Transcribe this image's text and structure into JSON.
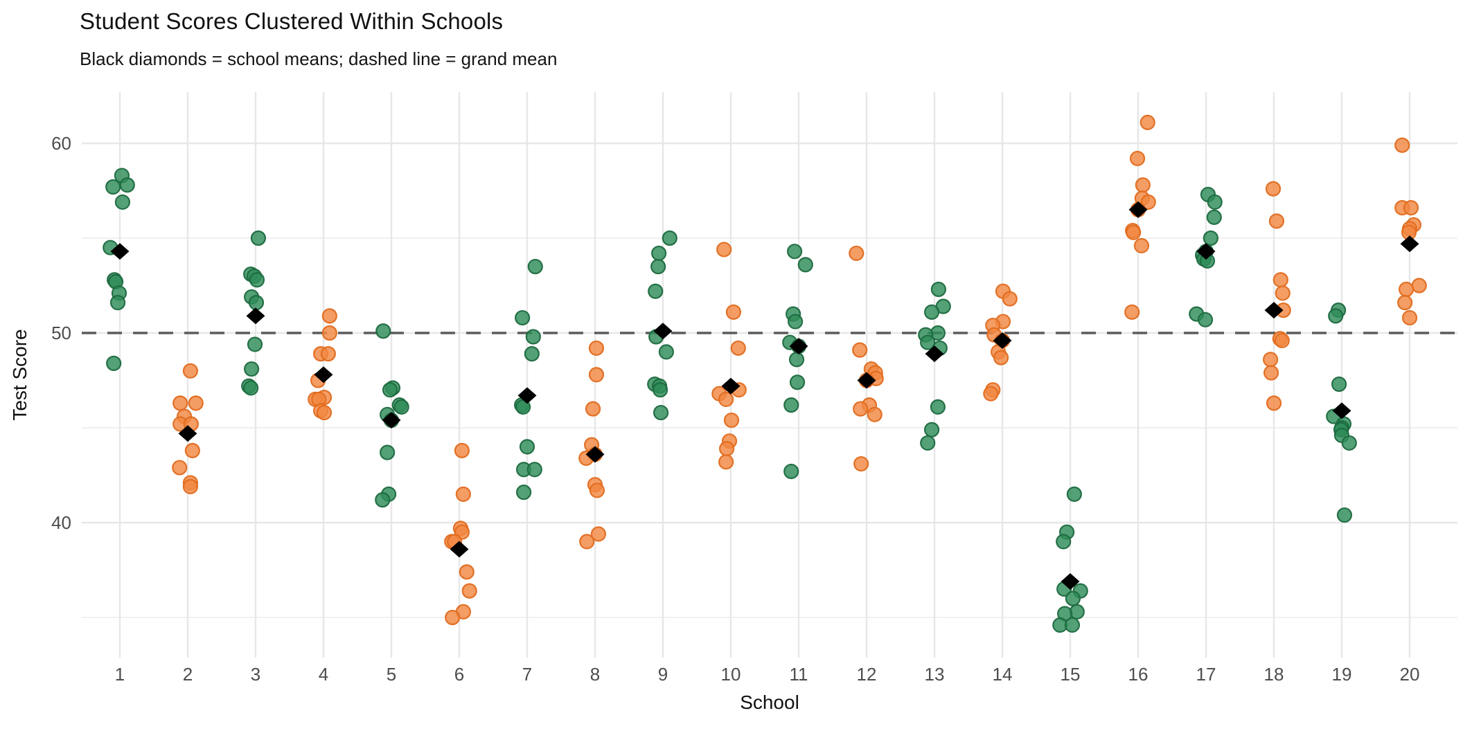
{
  "header": {
    "title": "Student Scores Clustered Within Schools",
    "subtitle": "Black diamonds = school means; dashed line = grand mean"
  },
  "chart_data": {
    "type": "scatter",
    "subtype": "jittered-strip-plot-with-group-means",
    "title": "Student Scores Clustered Within Schools",
    "subtitle": "Black diamonds = school means; dashed line = grand mean",
    "xlabel": "School",
    "ylabel": "Test Score",
    "x_categories": [
      "1",
      "2",
      "3",
      "4",
      "5",
      "6",
      "7",
      "8",
      "9",
      "10",
      "11",
      "12",
      "13",
      "14",
      "15",
      "16",
      "17",
      "18",
      "19",
      "20"
    ],
    "y_ticks": [
      40,
      50,
      60
    ],
    "y_minor_ticks": [
      35,
      45,
      55
    ],
    "ylim": [
      32.9,
      62.7
    ],
    "grand_mean": 50.0,
    "grid": true,
    "legend_position": "none",
    "annotations": {
      "mean_marker": "black diamond per school",
      "grand_mean_line": "horizontal dashed line at y = 50"
    },
    "colors": {
      "green_fill": "#2F8C59",
      "green_stroke": "#1D6A40",
      "orange_fill": "#F28742",
      "orange_stroke": "#E06C1F",
      "mean_diamond": "#000000",
      "grand_mean_line": "#5B5B5B",
      "grid_major": "#E7E7E7",
      "grid_minor": "#F0F0F0",
      "tick_label": "#4D4D4D",
      "axis_title": "#111111"
    },
    "schools": [
      {
        "school": 1,
        "color_group": "green",
        "mean": 54.3,
        "scores": [
          58.3,
          57.8,
          57.7,
          56.9,
          54.5,
          52.8,
          52.7,
          52.1,
          51.6,
          48.4
        ],
        "jitter": [
          0.03,
          0.11,
          -0.1,
          0.04,
          -0.14,
          -0.08,
          -0.06,
          -0.01,
          -0.03,
          -0.09
        ]
      },
      {
        "school": 2,
        "color_group": "orange",
        "mean": 44.7,
        "scores": [
          48.0,
          46.3,
          46.3,
          45.6,
          45.2,
          45.2,
          43.8,
          42.9,
          42.1,
          41.9
        ],
        "jitter": [
          0.04,
          -0.11,
          0.12,
          -0.05,
          -0.11,
          0.05,
          0.07,
          -0.12,
          0.04,
          0.04
        ]
      },
      {
        "school": 3,
        "color_group": "green",
        "mean": 50.9,
        "scores": [
          55.0,
          53.1,
          53.0,
          52.8,
          51.9,
          51.6,
          49.4,
          48.1,
          47.2,
          47.1
        ],
        "jitter": [
          0.04,
          -0.07,
          -0.02,
          0.02,
          -0.06,
          0.01,
          -0.01,
          -0.06,
          -0.1,
          -0.07
        ]
      },
      {
        "school": 4,
        "color_group": "orange",
        "mean": 47.8,
        "scores": [
          50.9,
          50.0,
          48.9,
          48.9,
          47.5,
          46.6,
          46.5,
          46.5,
          45.9,
          45.8
        ],
        "jitter": [
          0.09,
          0.09,
          -0.04,
          0.07,
          -0.08,
          0.01,
          -0.12,
          -0.07,
          -0.04,
          0.01
        ]
      },
      {
        "school": 5,
        "color_group": "green",
        "mean": 45.4,
        "scores": [
          50.1,
          47.1,
          47.0,
          46.2,
          46.1,
          45.7,
          45.4,
          43.7,
          41.5,
          41.2
        ],
        "jitter": [
          -0.12,
          0.02,
          -0.02,
          0.12,
          0.15,
          -0.06,
          0.0,
          -0.06,
          -0.04,
          -0.13
        ]
      },
      {
        "school": 6,
        "color_group": "orange",
        "mean": 38.6,
        "scores": [
          43.8,
          41.5,
          39.7,
          39.5,
          39.0,
          39.0,
          37.4,
          36.4,
          35.3,
          35.0
        ],
        "jitter": [
          0.04,
          0.06,
          0.02,
          0.04,
          -0.11,
          -0.07,
          0.11,
          0.15,
          0.06,
          -0.1
        ]
      },
      {
        "school": 7,
        "color_group": "green",
        "mean": 46.7,
        "scores": [
          53.5,
          50.8,
          49.8,
          48.9,
          46.2,
          46.1,
          44.0,
          42.8,
          42.8,
          41.6
        ],
        "jitter": [
          0.12,
          -0.07,
          0.09,
          0.07,
          -0.08,
          -0.06,
          0.0,
          -0.05,
          0.11,
          -0.05
        ]
      },
      {
        "school": 8,
        "color_group": "orange",
        "mean": 43.6,
        "scores": [
          49.2,
          47.8,
          46.0,
          44.1,
          43.6,
          43.4,
          42.0,
          41.7,
          39.4,
          39.0
        ],
        "jitter": [
          0.02,
          0.02,
          -0.03,
          -0.05,
          0.0,
          -0.13,
          0.0,
          0.03,
          0.05,
          -0.12
        ]
      },
      {
        "school": 9,
        "color_group": "green",
        "mean": 50.1,
        "scores": [
          55.0,
          54.2,
          53.5,
          52.2,
          49.8,
          49.0,
          47.3,
          47.2,
          47.0,
          45.8
        ],
        "jitter": [
          0.1,
          -0.06,
          -0.07,
          -0.11,
          -0.1,
          0.05,
          -0.12,
          -0.05,
          -0.04,
          -0.03
        ]
      },
      {
        "school": 10,
        "color_group": "orange",
        "mean": 47.2,
        "scores": [
          54.4,
          51.1,
          49.2,
          47.0,
          46.8,
          46.5,
          45.4,
          44.3,
          43.9,
          43.2
        ],
        "jitter": [
          -0.1,
          0.04,
          0.11,
          0.12,
          -0.17,
          -0.07,
          0.01,
          -0.02,
          -0.06,
          -0.07
        ]
      },
      {
        "school": 11,
        "color_group": "green",
        "mean": 49.3,
        "scores": [
          54.3,
          53.6,
          51.0,
          50.6,
          49.5,
          49.3,
          48.6,
          47.4,
          46.2,
          42.7
        ],
        "jitter": [
          -0.06,
          0.1,
          -0.08,
          -0.05,
          -0.13,
          0.0,
          -0.03,
          -0.02,
          -0.11,
          -0.11
        ]
      },
      {
        "school": 12,
        "color_group": "orange",
        "mean": 47.5,
        "scores": [
          54.2,
          49.1,
          48.1,
          47.9,
          47.6,
          47.5,
          46.2,
          46.0,
          45.7,
          43.1
        ],
        "jitter": [
          -0.15,
          -0.1,
          0.07,
          0.13,
          0.14,
          0.0,
          0.04,
          -0.09,
          0.12,
          -0.08
        ]
      },
      {
        "school": 13,
        "color_group": "green",
        "mean": 48.9,
        "scores": [
          52.3,
          51.4,
          51.1,
          50.0,
          49.9,
          49.5,
          49.2,
          46.1,
          44.9,
          44.2
        ],
        "jitter": [
          0.06,
          0.13,
          -0.04,
          0.05,
          -0.13,
          -0.1,
          0.08,
          0.05,
          -0.04,
          -0.1
        ]
      },
      {
        "school": 14,
        "color_group": "orange",
        "mean": 49.6,
        "scores": [
          52.2,
          51.8,
          50.6,
          50.4,
          49.9,
          49.6,
          49.0,
          48.7,
          47.0,
          46.8
        ],
        "jitter": [
          0.01,
          0.11,
          0.01,
          -0.14,
          -0.12,
          0.0,
          -0.06,
          -0.02,
          -0.14,
          -0.17
        ]
      },
      {
        "school": 15,
        "color_group": "green",
        "mean": 36.9,
        "scores": [
          41.5,
          39.5,
          39.0,
          36.5,
          36.4,
          36.0,
          35.3,
          35.2,
          34.6,
          34.6
        ],
        "jitter": [
          0.06,
          -0.05,
          -0.1,
          -0.09,
          0.15,
          0.04,
          0.1,
          -0.08,
          -0.15,
          0.03
        ]
      },
      {
        "school": 16,
        "color_group": "orange",
        "mean": 56.5,
        "scores": [
          61.1,
          59.2,
          57.8,
          57.1,
          56.9,
          56.5,
          55.4,
          55.3,
          54.6,
          51.1
        ],
        "jitter": [
          0.14,
          -0.01,
          0.07,
          0.06,
          0.15,
          0.0,
          -0.08,
          -0.07,
          0.05,
          -0.09
        ]
      },
      {
        "school": 17,
        "color_group": "green",
        "mean": 54.3,
        "scores": [
          57.3,
          56.9,
          56.1,
          55.0,
          54.3,
          54.1,
          53.9,
          53.8,
          51.0,
          50.7
        ],
        "jitter": [
          0.03,
          0.13,
          0.12,
          0.07,
          0.0,
          -0.05,
          -0.03,
          0.02,
          -0.14,
          -0.01
        ]
      },
      {
        "school": 18,
        "color_group": "orange",
        "mean": 51.2,
        "scores": [
          57.6,
          55.9,
          52.8,
          52.1,
          51.2,
          49.7,
          49.6,
          48.6,
          47.9,
          46.3
        ],
        "jitter": [
          -0.01,
          0.04,
          0.1,
          0.13,
          0.14,
          0.09,
          0.12,
          -0.05,
          -0.04,
          0.0
        ]
      },
      {
        "school": 19,
        "color_group": "green",
        "mean": 45.9,
        "scores": [
          51.2,
          50.9,
          47.3,
          45.6,
          45.2,
          45.0,
          44.9,
          44.6,
          44.2,
          40.4
        ],
        "jitter": [
          -0.05,
          -0.09,
          -0.04,
          -0.12,
          0.03,
          0.0,
          -0.01,
          0.0,
          0.11,
          0.04
        ]
      },
      {
        "school": 20,
        "color_group": "orange",
        "mean": 54.7,
        "scores": [
          59.9,
          56.6,
          56.6,
          55.7,
          55.5,
          55.3,
          52.5,
          52.3,
          51.6,
          50.8
        ],
        "jitter": [
          -0.11,
          -0.11,
          0.02,
          0.06,
          0.0,
          -0.01,
          0.14,
          -0.05,
          -0.07,
          0.0
        ]
      }
    ]
  }
}
